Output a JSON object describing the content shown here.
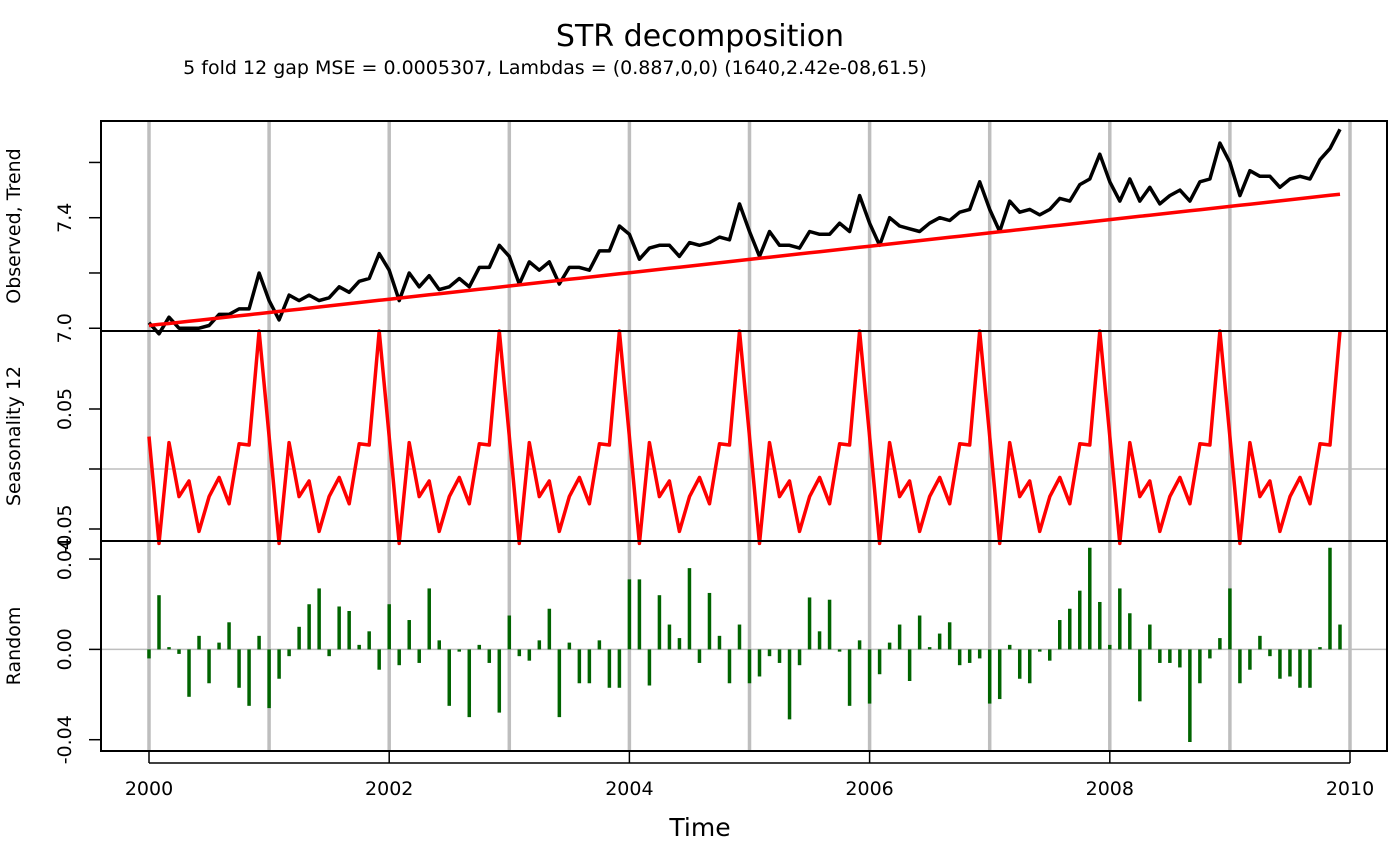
{
  "title": "STR decomposition",
  "subtitle": "5 fold 12 gap MSE = 0.0005307, Lambdas = (0.887,0,0) (1640,2.42e-08,61.5)",
  "xlabel": "Time",
  "colors": {
    "observed": "#000000",
    "trend": "#ff0000",
    "seasonal": "#ff0000",
    "random": "#006400",
    "grid": "#bebebe",
    "frame": "#000000"
  },
  "chart_data": [
    {
      "type": "line",
      "panel": "observed",
      "ylabel": "Observed, Trend",
      "x_start": 2000,
      "x_step_per_year": 12,
      "xlim": [
        2000,
        2010
      ],
      "x_ticks": [
        2000,
        2002,
        2004,
        2006,
        2008,
        2010
      ],
      "ylim": [
        6.99,
        7.75
      ],
      "y_ticks": [
        7.0,
        7.2,
        7.4,
        7.6
      ],
      "y_tick_labels": [
        "7.0",
        "",
        "7.4",
        ""
      ],
      "grid": "vertical yearly lines",
      "series": [
        {
          "name": "Observed",
          "values": [
            7.02,
            6.98,
            7.04,
            7.0,
            7.0,
            7.0,
            7.01,
            7.05,
            7.05,
            7.07,
            7.07,
            7.2,
            7.1,
            7.03,
            7.12,
            7.1,
            7.12,
            7.1,
            7.11,
            7.15,
            7.13,
            7.17,
            7.18,
            7.27,
            7.21,
            7.1,
            7.2,
            7.15,
            7.19,
            7.14,
            7.15,
            7.18,
            7.15,
            7.22,
            7.22,
            7.3,
            7.26,
            7.16,
            7.24,
            7.21,
            7.24,
            7.16,
            7.22,
            7.22,
            7.21,
            7.28,
            7.28,
            7.37,
            7.34,
            7.25,
            7.29,
            7.3,
            7.3,
            7.26,
            7.31,
            7.3,
            7.31,
            7.33,
            7.32,
            7.45,
            7.35,
            7.26,
            7.35,
            7.3,
            7.3,
            7.29,
            7.35,
            7.34,
            7.34,
            7.38,
            7.35,
            7.48,
            7.38,
            7.3,
            7.4,
            7.37,
            7.36,
            7.35,
            7.38,
            7.4,
            7.39,
            7.42,
            7.43,
            7.53,
            7.43,
            7.35,
            7.46,
            7.42,
            7.43,
            7.41,
            7.43,
            7.47,
            7.46,
            7.52,
            7.54,
            7.63,
            7.53,
            7.46,
            7.54,
            7.46,
            7.51,
            7.45,
            7.48,
            7.5,
            7.46,
            7.53,
            7.54,
            7.67,
            7.6,
            7.48,
            7.57,
            7.55,
            7.55,
            7.51,
            7.54,
            7.55,
            7.54,
            7.61,
            7.65,
            7.72
          ]
        },
        {
          "name": "Trend",
          "values": [
            7.01,
            7.014,
            7.017,
            7.021,
            7.025,
            7.029,
            7.033,
            7.037,
            7.041,
            7.045,
            7.049,
            7.053,
            7.057,
            7.061,
            7.065,
            7.069,
            7.073,
            7.077,
            7.081,
            7.085,
            7.089,
            7.093,
            7.097,
            7.101,
            7.105,
            7.109,
            7.113,
            7.117,
            7.121,
            7.125,
            7.129,
            7.133,
            7.137,
            7.141,
            7.145,
            7.149,
            7.153,
            7.157,
            7.161,
            7.165,
            7.169,
            7.173,
            7.177,
            7.181,
            7.185,
            7.189,
            7.193,
            7.197,
            7.201,
            7.205,
            7.209,
            7.213,
            7.217,
            7.221,
            7.225,
            7.229,
            7.233,
            7.237,
            7.241,
            7.245,
            7.249,
            7.253,
            7.257,
            7.261,
            7.265,
            7.269,
            7.273,
            7.277,
            7.281,
            7.285,
            7.289,
            7.293,
            7.297,
            7.301,
            7.305,
            7.309,
            7.313,
            7.317,
            7.321,
            7.325,
            7.329,
            7.333,
            7.337,
            7.341,
            7.345,
            7.349,
            7.353,
            7.357,
            7.361,
            7.365,
            7.369,
            7.373,
            7.377,
            7.381,
            7.385,
            7.389,
            7.393,
            7.397,
            7.401,
            7.405,
            7.409,
            7.413,
            7.417,
            7.421,
            7.425,
            7.429,
            7.433,
            7.437,
            7.441,
            7.445,
            7.449,
            7.453,
            7.457,
            7.461,
            7.465,
            7.469,
            7.473,
            7.477,
            7.481,
            7.485
          ]
        }
      ]
    },
    {
      "type": "line",
      "panel": "seasonal",
      "ylabel": "Seasonality 12",
      "x_start": 2000,
      "x_step_per_year": 12,
      "xlim": [
        2000,
        2010
      ],
      "ylim": [
        -0.06,
        0.115
      ],
      "y_ticks": [
        -0.05,
        0.0,
        0.05
      ],
      "y_tick_labels": [
        "-0.05",
        "",
        "0.05"
      ],
      "zero_line": true,
      "series": [
        {
          "name": "Seasonality 12",
          "values": [
            0.027,
            -0.062,
            0.022,
            -0.023,
            -0.01,
            -0.052,
            -0.023,
            -0.007,
            -0.029,
            0.021,
            0.02,
            0.115
          ]
        }
      ]
    },
    {
      "type": "bar",
      "panel": "random",
      "ylabel": "Random",
      "x_start": 2000,
      "x_step_per_year": 12,
      "xlim": [
        2000,
        2010
      ],
      "ylim": [
        -0.045,
        0.048
      ],
      "y_ticks": [
        -0.04,
        0.0,
        0.04
      ],
      "y_tick_labels": [
        "-0.04",
        "0.00",
        "0.04"
      ],
      "zero_line": true,
      "series": [
        {
          "name": "Random",
          "values": [
            -0.004,
            0.024,
            0.001,
            -0.002,
            -0.021,
            0.006,
            -0.015,
            0.003,
            0.012,
            -0.017,
            -0.025,
            0.006,
            -0.026,
            -0.013,
            -0.003,
            0.01,
            0.02,
            0.027,
            -0.003,
            0.019,
            0.017,
            0.002,
            0.008,
            -0.009,
            0.02,
            -0.007,
            0.013,
            -0.006,
            0.027,
            0.004,
            -0.025,
            -0.001,
            -0.03,
            0.002,
            -0.006,
            -0.028,
            0.015,
            -0.003,
            -0.005,
            0.004,
            0.018,
            -0.03,
            0.003,
            -0.015,
            -0.015,
            0.004,
            -0.017,
            -0.017,
            0.031,
            0.031,
            -0.016,
            0.024,
            0.011,
            0.005,
            0.036,
            -0.006,
            0.025,
            0.006,
            -0.015,
            0.011,
            -0.015,
            -0.012,
            -0.003,
            -0.006,
            -0.031,
            -0.007,
            0.023,
            0.008,
            0.022,
            -0.001,
            -0.025,
            0.004,
            -0.024,
            -0.011,
            0.003,
            0.011,
            -0.014,
            0.015,
            0.001,
            0.007,
            0.012,
            -0.007,
            -0.006,
            -0.004,
            -0.024,
            -0.022,
            0.002,
            -0.013,
            -0.015,
            -0.001,
            -0.005,
            0.013,
            0.018,
            0.026,
            0.045,
            0.021,
            0.002,
            0.027,
            0.016,
            -0.023,
            0.011,
            -0.006,
            -0.006,
            -0.008,
            -0.041,
            -0.015,
            -0.004,
            0.005,
            0.027,
            -0.015,
            -0.009,
            0.006,
            -0.003,
            -0.013,
            -0.012,
            -0.017,
            -0.017,
            0.001,
            0.045,
            0.011
          ]
        }
      ]
    }
  ]
}
